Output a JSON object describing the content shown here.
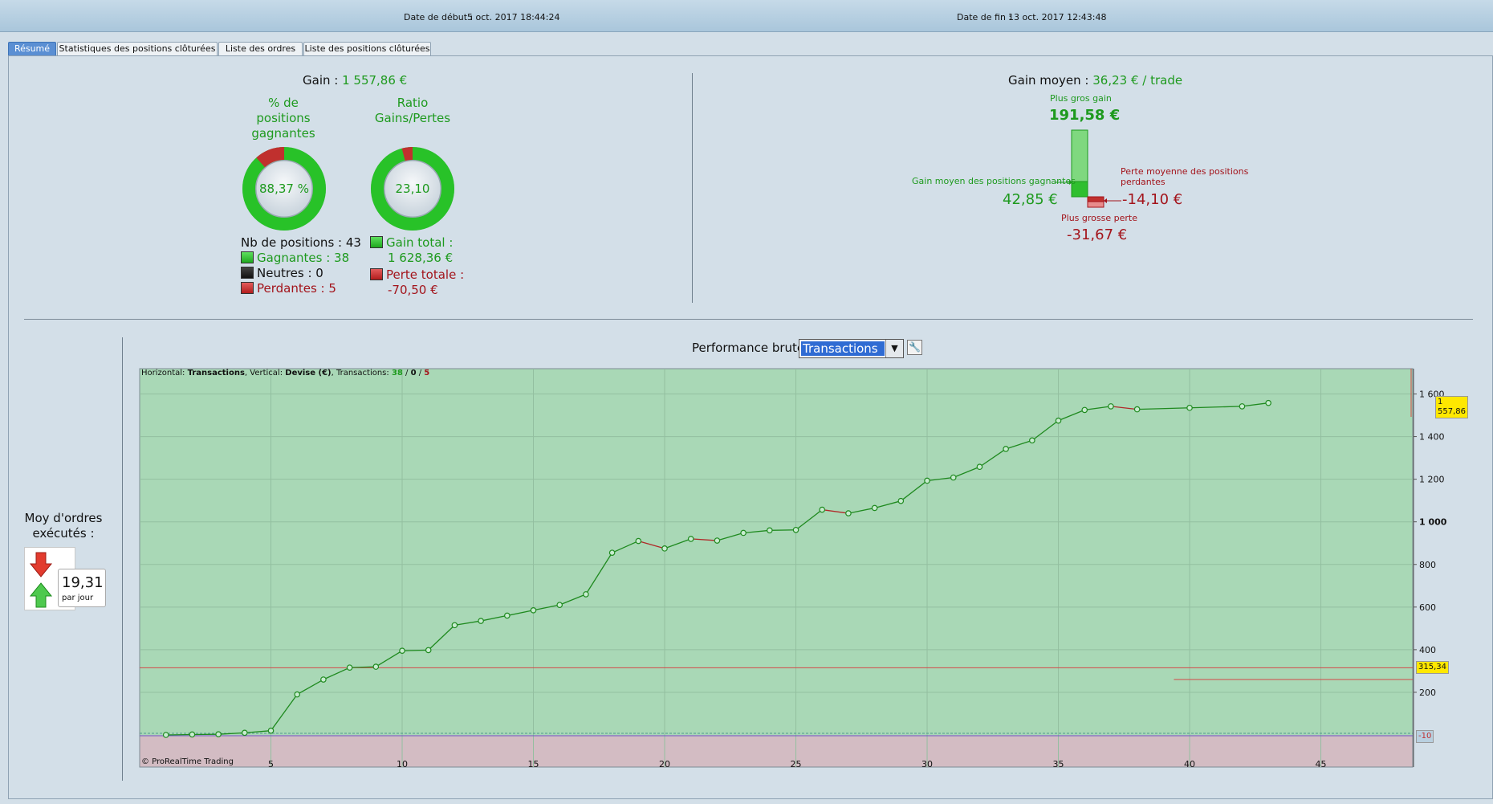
{
  "header": {
    "start_label": "Date de début :",
    "start_value": "5 oct. 2017 18:44:24",
    "end_label": "Date de fin :",
    "end_value": "13 oct. 2017 12:43:48"
  },
  "tabs": [
    {
      "label": "Résumé",
      "active": true
    },
    {
      "label": "Statistiques des positions clôturées",
      "active": false
    },
    {
      "label": "Liste des ordres",
      "active": false
    },
    {
      "label": "Liste des positions clôturées",
      "active": false
    }
  ],
  "summary": {
    "gain_label": "Gain :",
    "gain_value": "1 557,86 €",
    "pct_title": [
      "% de",
      "positions",
      "gagnantes"
    ],
    "pct_value": "88,37 %",
    "pct_fraction": 0.8837,
    "ratio_title": [
      "Ratio",
      "Gains/Pertes"
    ],
    "ratio_value": "23,10",
    "ratio_fraction": 0.9585,
    "nb_positions": "Nb de positions : 43",
    "gagnantes": "Gagnantes : 38",
    "neutres": "Neutres : 0",
    "perdantes": "Perdantes : 5",
    "gain_total_label": "Gain total :",
    "gain_total_value": "1 628,36 €",
    "perte_totale_label": "Perte totale :",
    "perte_totale_value": "-70,50 €"
  },
  "average": {
    "label": "Gain moyen :",
    "value": "36,23 € / trade",
    "best_label": "Plus gros gain",
    "best_value": "191,58 €",
    "avg_win_label": "Gain moyen des positions gagnantes",
    "avg_win_value": "42,85 €",
    "avg_loss_label_1": "Perte moyenne des positions",
    "avg_loss_label_2": "perdantes",
    "avg_loss_value": "-14,10 €",
    "worst_label": "Plus grosse perte",
    "worst_value": "-31,67 €"
  },
  "orders": {
    "title_1": "Moy d'ordres",
    "title_2": "exécutés :",
    "value": "19,31",
    "unit": "par jour"
  },
  "performance": {
    "title": "Performance brute",
    "selected": "Transactions",
    "info_prefix": "Horizontal: ",
    "info_h": "Transactions",
    "info_mid": ", Vertical: ",
    "info_v": "Devise (€)",
    "info_tx": ", Transactions: ",
    "info_win": "38",
    "info_sep": " / ",
    "info_neutral": "0",
    "info_loss": "5",
    "copyright": "© ProRealTime Trading",
    "badge_last": "1 557,86",
    "badge_mid": "315,34",
    "badge_low": "-10"
  },
  "chart_data": {
    "type": "line",
    "xlim": [
      0,
      48.5
    ],
    "ylim": [
      -150,
      1700
    ],
    "x_ticks": [
      5,
      10,
      15,
      20,
      25,
      30,
      35,
      40,
      45
    ],
    "y_ticks": [
      200,
      400,
      600,
      800,
      1000,
      1200,
      1400,
      1600
    ],
    "y_tick_labels": [
      "200",
      "400",
      "600",
      "800",
      "1 000",
      "1 200",
      "1 400",
      "1 600"
    ],
    "reference_line": 315.34,
    "points": [
      [
        1,
        0
      ],
      [
        2,
        2
      ],
      [
        3,
        3
      ],
      [
        4,
        10
      ],
      [
        5,
        20
      ],
      [
        6,
        190
      ],
      [
        7,
        260
      ],
      [
        8,
        316
      ],
      [
        9,
        320
      ],
      [
        10,
        395
      ],
      [
        11,
        398
      ],
      [
        12,
        515
      ],
      [
        13,
        535
      ],
      [
        14,
        560
      ],
      [
        15,
        585
      ],
      [
        16,
        610
      ],
      [
        17,
        660
      ],
      [
        18,
        855
      ],
      [
        19,
        910
      ],
      [
        20,
        875
      ],
      [
        21,
        920
      ],
      [
        22,
        912
      ],
      [
        23,
        948
      ],
      [
        24,
        960
      ],
      [
        25,
        962
      ],
      [
        26,
        1057
      ],
      [
        27,
        1040
      ],
      [
        28,
        1065
      ],
      [
        29,
        1098
      ],
      [
        30,
        1193
      ],
      [
        31,
        1208
      ],
      [
        32,
        1258
      ],
      [
        33,
        1342
      ],
      [
        34,
        1382
      ],
      [
        35,
        1475
      ],
      [
        36,
        1525
      ],
      [
        37,
        1542
      ],
      [
        38,
        1528
      ],
      [
        40,
        1535
      ],
      [
        42,
        1542
      ],
      [
        43,
        1557.86
      ]
    ]
  }
}
